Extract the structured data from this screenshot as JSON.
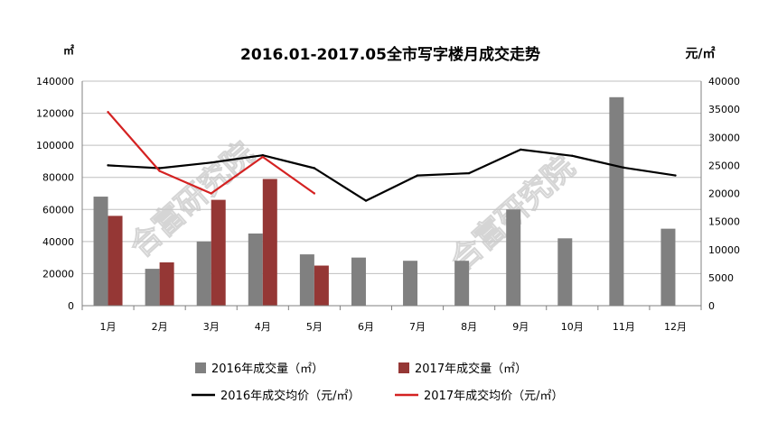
{
  "chart_data": {
    "type": "bar",
    "title": "2016.01-2017.05全市写字楼月成交走势",
    "ylabel": "㎡",
    "y2label": "元/㎡",
    "ylim": [
      0,
      140000
    ],
    "y2lim": [
      0,
      40000
    ],
    "yticks": [
      "0",
      "20000",
      "40000",
      "60000",
      "80000",
      "100000",
      "120000",
      "140000"
    ],
    "y2ticks": [
      "0",
      "5000",
      "10000",
      "15000",
      "20000",
      "25000",
      "30000",
      "35000",
      "40000"
    ],
    "categories": [
      "1月",
      "2月",
      "3月",
      "4月",
      "5月",
      "6月",
      "7月",
      "8月",
      "9月",
      "10月",
      "11月",
      "12月"
    ],
    "grid": true,
    "legend_position": "bottom",
    "watermark": "合富研究院",
    "series": [
      {
        "name": "2016年成交量（㎡）",
        "kind": "bar",
        "axis": "left",
        "color": "#808080",
        "values": [
          68000,
          23000,
          40000,
          45000,
          32000,
          30000,
          28000,
          28000,
          60000,
          42000,
          130000,
          48000
        ]
      },
      {
        "name": "2017年成交量（㎡）",
        "kind": "bar",
        "axis": "left",
        "color": "#953735",
        "values": [
          56000,
          27000,
          66000,
          79000,
          25000,
          null,
          null,
          null,
          null,
          null,
          null,
          null
        ]
      },
      {
        "name": "2016年成交均价（元/㎡）",
        "kind": "line",
        "axis": "right",
        "color": "#000000",
        "values": [
          25000,
          24500,
          25500,
          26800,
          24500,
          18700,
          23200,
          23600,
          27800,
          26700,
          24600,
          23200
        ]
      },
      {
        "name": "2017年成交均价（元/㎡）",
        "kind": "line",
        "axis": "right",
        "color": "#d42222",
        "values": [
          34500,
          24000,
          20000,
          26500,
          20000,
          null,
          null,
          null,
          null,
          null,
          null,
          null
        ]
      }
    ]
  }
}
